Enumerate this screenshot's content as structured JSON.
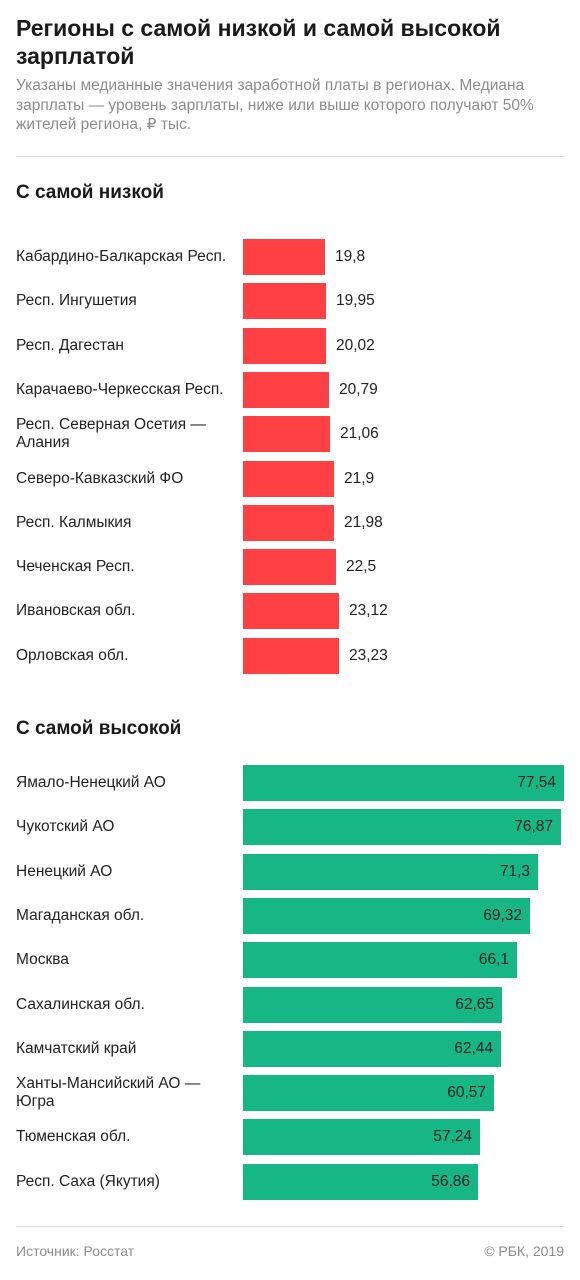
{
  "header": {
    "title": "Регионы с самой низкой и самой высокой зарплатой",
    "subtitle": "Указаны медианные значения заработной платы в регионах. Медиана зарплаты — уровень зарплаты, ниже или выше которого получают 50% жителей региона, ₽ тыс."
  },
  "footer": {
    "source": "Источник: Росстат",
    "copyright": "© РБК, 2019"
  },
  "colors": {
    "low": "#fc4044",
    "high": "#16b784"
  },
  "chart_data": [
    {
      "type": "bar",
      "orientation": "horizontal",
      "title": "С самой низкой",
      "categories": [
        "Кабардино-Балкарская Респ.",
        "Респ. Ингушетия",
        "Респ. Дагестан",
        "Карачаево-Черкесская Респ.",
        "Респ. Северная Осетия — Алания",
        "Северо-Кавказский ФО",
        "Респ. Калмыкия",
        "Чеченская Респ.",
        "Ивановская обл.",
        "Орловская обл."
      ],
      "values": [
        19.8,
        19.95,
        20.02,
        20.79,
        21.06,
        21.9,
        21.98,
        22.5,
        23.12,
        23.23
      ],
      "value_labels": [
        "19,8",
        "19,95",
        "20,02",
        "20,79",
        "21,06",
        "21,9",
        "21,98",
        "22,5",
        "23,12",
        "23,23"
      ],
      "color": "#fc4044"
    },
    {
      "type": "bar",
      "orientation": "horizontal",
      "title": "С самой высокой",
      "categories": [
        "Ямало-Ненецкий АО",
        "Чукотский АО",
        "Ненецкий АО",
        "Магаданская обл.",
        "Москва",
        "Сахалинская обл.",
        "Камчатский край",
        "Ханты-Мансийский АО — Югра",
        "Тюменская обл.",
        "Респ. Саха (Якутия)"
      ],
      "values": [
        77.54,
        76.87,
        71.3,
        69.32,
        66.1,
        62.65,
        62.44,
        60.57,
        57.24,
        56.86
      ],
      "value_labels": [
        "77,54",
        "76,87",
        "71,3",
        "69,32",
        "66,1",
        "62,65",
        "62,44",
        "60,57",
        "57,24",
        "56,86"
      ],
      "color": "#16b784"
    }
  ]
}
